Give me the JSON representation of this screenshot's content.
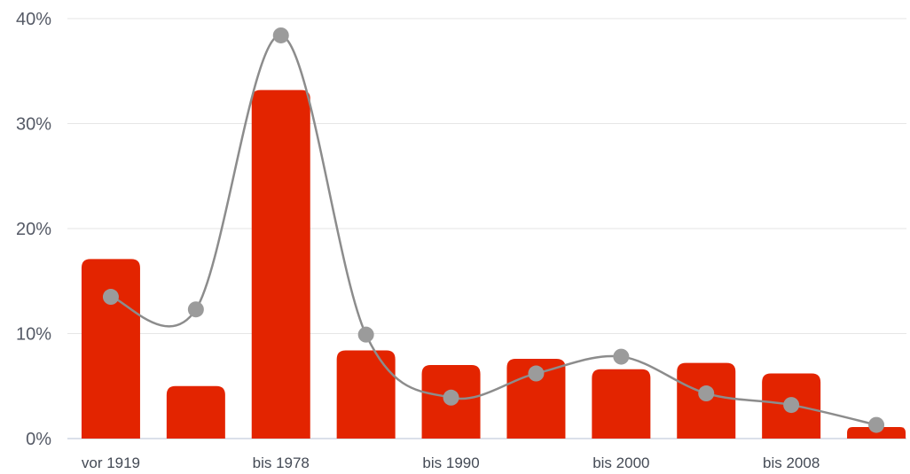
{
  "chart_data": {
    "type": "bar",
    "categories": [
      "vor 1919",
      "",
      "bis 1978",
      "",
      "bis 1990",
      "",
      "bis 2000",
      "",
      "bis 2008",
      ""
    ],
    "series": [
      {
        "type": "bar",
        "values": [
          17.1,
          5.0,
          33.2,
          8.4,
          7.0,
          7.6,
          6.6,
          7.2,
          6.2,
          1.1
        ]
      },
      {
        "type": "line",
        "values": [
          13.5,
          12.3,
          38.4,
          9.9,
          3.9,
          6.2,
          7.8,
          4.3,
          3.2,
          1.3
        ]
      }
    ],
    "yticks": [
      "0%",
      "10%",
      "20%",
      "30%",
      "40%"
    ],
    "ylim": [
      0,
      40
    ],
    "grid": true,
    "colors": {
      "bar": "#e32400",
      "line": "#8c8c8c",
      "marker": "#9b9b9b"
    }
  }
}
